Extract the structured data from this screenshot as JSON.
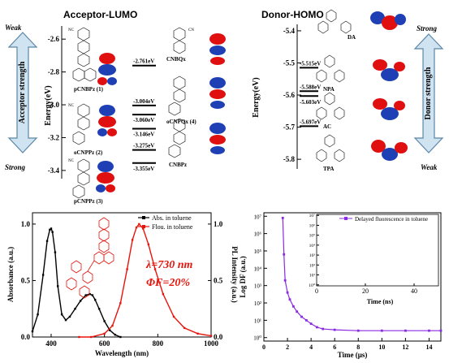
{
  "colors": {
    "axis": "#000000",
    "arrow_fill": "#cfe3f1",
    "arrow_stroke": "#5b86a8",
    "absorbance": "#000000",
    "fluorescence": "#e8140c",
    "decay": "#8a2be2",
    "orbital_red": "#e01010",
    "orbital_blue": "#1f3fb5",
    "highlight_text": "#e8140c"
  },
  "acceptor_panel": {
    "title": "Acceptor-LUMO",
    "arrow_top_label": "Weak",
    "arrow_bottom_label": "Strong",
    "arrow_text": "Acceptor strength",
    "chart_data": {
      "type": "table",
      "ylabel": "Energy(eV)",
      "ylim": [
        -3.45,
        -2.52
      ],
      "yticks": [
        -2.6,
        -2.8,
        -3.0,
        -3.2,
        -3.4
      ],
      "ytick_labels": [
        "-2.6",
        "-2.8",
        "-3.0",
        "-3.2",
        "-3.4"
      ],
      "levels": [
        {
          "value": -2.761,
          "label": "-2.761eV"
        },
        {
          "value": -3.004,
          "label": "-3.004eV"
        },
        {
          "value": -3.06,
          "label": "-3.060eV"
        },
        {
          "value": -3.146,
          "label": "-3.146eV"
        },
        {
          "value": -3.275,
          "label": "-3.275eV"
        },
        {
          "value": -3.355,
          "label": "-3.355eV"
        }
      ]
    },
    "molecule_labels": [
      "pCNBPz (1)",
      "oCNPPz (2)",
      "pCNPPz (3)",
      "CNBQx",
      "oCNPQx (4)",
      "CNBPz"
    ],
    "substituent_label": "NC",
    "substituent_label_right": "CN"
  },
  "donor_panel": {
    "title": "Donor-HOMO",
    "arrow_top_label": "Strong",
    "arrow_bottom_label": "Weak",
    "arrow_text": "Donor strength",
    "chart_data": {
      "type": "table",
      "ylabel": "Energy(eV)",
      "ylim": [
        -5.83,
        -5.38
      ],
      "yticks": [
        -5.4,
        -5.5,
        -5.6,
        -5.7,
        -5.8
      ],
      "ytick_labels": [
        "-5.4",
        "-5.5",
        "-5.6",
        "-5.7",
        "-5.8"
      ],
      "levels": [
        {
          "value": -5.515,
          "label": "-5.515eV"
        },
        {
          "value": -5.588,
          "label": "-5.588eV"
        },
        {
          "value": -5.603,
          "label": "-5.603eV"
        },
        {
          "value": -5.697,
          "label": "-5.697eV"
        }
      ]
    },
    "molecule_labels": [
      "DA",
      "NPA",
      "AC",
      "TPA"
    ]
  },
  "spectra_panel": {
    "chart_data": {
      "type": "line",
      "xlabel": "Wavelength (nm)",
      "ylabel_left": "Absorbance (a.u.)",
      "ylabel_right": "PL Intensity (a.u.)",
      "xlim": [
        330,
        1000
      ],
      "ylim": [
        0,
        1.1
      ],
      "xticks": [
        400,
        600,
        800,
        1000
      ],
      "xtick_labels": [
        "400",
        "600",
        "800",
        "1000"
      ],
      "yticks": [
        0.0,
        0.5,
        1.0
      ],
      "ytick_labels": [
        "0.0",
        "0.5",
        "1.0"
      ],
      "series": [
        {
          "name": "Abs. in toluene",
          "x": [
            330,
            350,
            370,
            385,
            395,
            400,
            405,
            415,
            425,
            440,
            455,
            470,
            490,
            510,
            530,
            545,
            555,
            565,
            580,
            600,
            620,
            640,
            660
          ],
          "y": [
            0.05,
            0.2,
            0.55,
            0.85,
            0.95,
            0.96,
            0.93,
            0.75,
            0.45,
            0.2,
            0.15,
            0.18,
            0.25,
            0.32,
            0.37,
            0.38,
            0.37,
            0.33,
            0.25,
            0.14,
            0.06,
            0.02,
            0.0
          ]
        },
        {
          "name": "Flou. in toluene",
          "x": [
            505,
            550,
            600,
            630,
            660,
            685,
            705,
            720,
            730,
            745,
            765,
            790,
            820,
            860,
            900,
            950,
            1000
          ],
          "y": [
            0.0,
            0.0,
            0.03,
            0.1,
            0.3,
            0.6,
            0.86,
            0.97,
            1.0,
            0.96,
            0.82,
            0.6,
            0.38,
            0.18,
            0.08,
            0.03,
            0.01
          ]
        }
      ]
    },
    "annotation_lambda": "λ=730 nm",
    "annotation_phi": "ΦF=20%"
  },
  "decay_panel": {
    "chart_data": {
      "type": "scatter",
      "xlabel": "Time (μs)",
      "ylabel": "Log DF (a.u.)",
      "log_y": true,
      "xlim": [
        0,
        15
      ],
      "ylim_exponent": [
        -0.2,
        7.2
      ],
      "xticks": [
        0,
        2,
        4,
        6,
        8,
        10,
        12,
        14
      ],
      "xtick_labels": [
        "0",
        "2",
        "4",
        "6",
        "8",
        "10",
        "12",
        "14"
      ],
      "yticks_exponent": [
        0,
        1,
        2,
        3,
        4,
        5,
        6,
        7
      ],
      "ytick_labels": [
        "10⁰",
        "10¹",
        "10²",
        "10³",
        "10⁴",
        "10⁵",
        "10⁶",
        "10⁷"
      ],
      "series": [
        {
          "name": "Delayed fluorescence in toluene",
          "x": [
            1.6,
            1.7,
            1.8,
            2.0,
            2.2,
            2.5,
            2.8,
            3.2,
            3.6,
            4.0,
            4.5,
            5.0,
            6.0,
            8.0,
            10.0,
            12.0,
            14.0,
            15.0
          ],
          "log10_y": [
            6.9,
            4.8,
            3.3,
            2.6,
            2.2,
            1.8,
            1.5,
            1.2,
            1.0,
            0.8,
            0.6,
            0.5,
            0.45,
            0.4,
            0.4,
            0.4,
            0.4,
            0.4
          ]
        }
      ]
    },
    "inset": {
      "chart_data": {
        "type": "scatter",
        "xlabel": "Time (ns)",
        "ylim_exponent": [
          -0.1,
          7.1
        ],
        "xlim": [
          0,
          50
        ],
        "xticks": [
          0,
          20,
          40
        ],
        "xtick_labels": [
          "0",
          "20",
          "40"
        ],
        "yticks_exponent": [
          0,
          1,
          2,
          3,
          4,
          5,
          6,
          7
        ],
        "ytick_labels": [
          "10⁰",
          "10¹",
          "10²",
          "10³",
          "10⁴",
          "10⁵",
          "10⁶",
          "10⁷"
        ],
        "legend": "Delayed fluorescence in toluene"
      }
    }
  }
}
